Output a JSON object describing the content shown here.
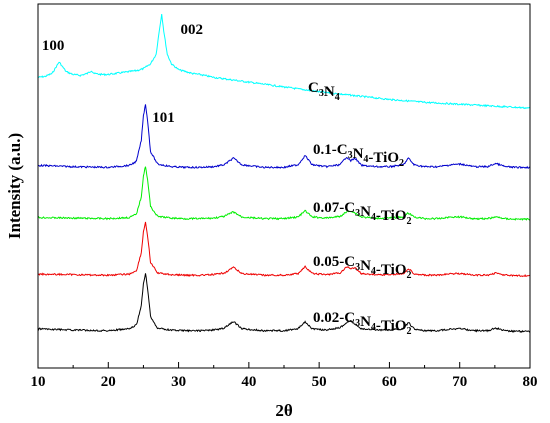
{
  "chart_data": {
    "type": "line",
    "title": "",
    "xlabel": "2θ",
    "ylabel": "Intensity (a.u.)",
    "xlim": [
      10,
      80
    ],
    "x_ticks": [
      10,
      20,
      30,
      40,
      50,
      60,
      70,
      80
    ],
    "y_ticks_shown": false,
    "grid": false,
    "legend": "none",
    "annotations": [
      {
        "text": "100",
        "x": 13.0
      },
      {
        "text": "002",
        "x": 27.6
      },
      {
        "text": "101",
        "x": 25.3
      }
    ],
    "series": [
      {
        "label_parts": [
          [
            "C",
            false
          ],
          [
            "3",
            true
          ],
          [
            "N",
            false
          ],
          [
            "4",
            true
          ]
        ],
        "color": "#00ffff",
        "x": [
          10,
          11,
          12,
          12.5,
          13.0,
          13.5,
          14,
          15,
          16,
          17,
          17.6,
          18,
          19,
          20,
          21,
          22,
          23,
          24,
          25,
          26,
          26.8,
          27.3,
          27.6,
          27.9,
          28.4,
          29,
          30,
          31,
          32,
          33,
          35,
          37,
          40,
          45,
          50,
          55,
          60,
          65,
          70,
          75,
          80
        ],
        "values": [
          0.34,
          0.35,
          0.38,
          0.44,
          0.5,
          0.45,
          0.4,
          0.37,
          0.36,
          0.38,
          0.41,
          0.38,
          0.37,
          0.37,
          0.38,
          0.39,
          0.4,
          0.41,
          0.43,
          0.48,
          0.58,
          0.85,
          1.0,
          0.82,
          0.58,
          0.48,
          0.42,
          0.4,
          0.38,
          0.37,
          0.34,
          0.32,
          0.29,
          0.24,
          0.19,
          0.15,
          0.11,
          0.08,
          0.06,
          0.04,
          0.02
        ]
      },
      {
        "label_parts": [
          [
            "0.1-C",
            false
          ],
          [
            "3",
            true
          ],
          [
            "N",
            false
          ],
          [
            "4",
            true
          ],
          [
            "-TiO",
            false
          ],
          [
            "2",
            true
          ]
        ],
        "color": "#0000cc",
        "x": [
          10,
          15,
          20,
          23,
          24,
          24.7,
          25.0,
          25.3,
          25.6,
          26,
          27,
          29,
          31,
          33,
          35,
          36.5,
          37.8,
          39,
          42,
          45,
          47,
          48.0,
          49,
          51,
          53,
          53.9,
          54.5,
          55.1,
          56,
          58,
          60,
          62,
          62.7,
          63.5,
          65,
          67,
          68.8,
          70.2,
          72,
          74,
          75.1,
          76.5,
          78,
          80
        ],
        "values": [
          0.07,
          0.05,
          0.04,
          0.07,
          0.13,
          0.45,
          0.82,
          1.0,
          0.75,
          0.28,
          0.09,
          0.05,
          0.04,
          0.04,
          0.05,
          0.08,
          0.18,
          0.08,
          0.04,
          0.04,
          0.08,
          0.22,
          0.08,
          0.05,
          0.08,
          0.2,
          0.14,
          0.18,
          0.07,
          0.05,
          0.05,
          0.08,
          0.18,
          0.08,
          0.05,
          0.05,
          0.08,
          0.09,
          0.05,
          0.05,
          0.1,
          0.05,
          0.04,
          0.04
        ]
      },
      {
        "label_parts": [
          [
            "0.07-C",
            false
          ],
          [
            "3",
            true
          ],
          [
            "N",
            false
          ],
          [
            "4",
            true
          ],
          [
            "-TiO",
            false
          ],
          [
            "2",
            true
          ]
        ],
        "color": "#00ee00",
        "x": [
          10,
          15,
          20,
          23,
          24,
          24.7,
          25.0,
          25.3,
          25.6,
          26,
          27,
          29,
          31,
          33,
          35,
          36.5,
          37.8,
          39,
          42,
          45,
          47,
          48.0,
          49,
          51,
          53,
          53.9,
          54.5,
          55.1,
          56,
          58,
          60,
          62,
          62.7,
          63.5,
          65,
          67,
          68.8,
          70.2,
          72,
          74,
          75.1,
          76.5,
          78,
          80
        ],
        "values": [
          0.08,
          0.07,
          0.06,
          0.08,
          0.14,
          0.45,
          0.82,
          1.0,
          0.75,
          0.28,
          0.1,
          0.07,
          0.06,
          0.06,
          0.07,
          0.1,
          0.18,
          0.09,
          0.06,
          0.06,
          0.09,
          0.2,
          0.09,
          0.07,
          0.1,
          0.18,
          0.2,
          0.16,
          0.09,
          0.07,
          0.07,
          0.09,
          0.16,
          0.09,
          0.06,
          0.06,
          0.09,
          0.09,
          0.06,
          0.06,
          0.09,
          0.06,
          0.05,
          0.05
        ]
      },
      {
        "label_parts": [
          [
            "0.05-C",
            false
          ],
          [
            "3",
            true
          ],
          [
            "N",
            false
          ],
          [
            "4",
            true
          ],
          [
            "-TiO",
            false
          ],
          [
            "2",
            true
          ]
        ],
        "color": "#ee0000",
        "x": [
          10,
          15,
          20,
          23,
          24,
          24.7,
          25.0,
          25.3,
          25.6,
          26,
          27,
          29,
          31,
          33,
          35,
          36.5,
          37.8,
          39,
          42,
          45,
          47,
          48.0,
          49,
          51,
          53,
          53.9,
          54.5,
          55.1,
          56,
          58,
          60,
          62,
          62.7,
          63.5,
          65,
          67,
          68.8,
          70.2,
          72,
          74,
          75.1,
          76.5,
          78,
          80
        ],
        "values": [
          0.07,
          0.06,
          0.05,
          0.07,
          0.13,
          0.45,
          0.82,
          1.0,
          0.75,
          0.28,
          0.09,
          0.06,
          0.05,
          0.05,
          0.06,
          0.09,
          0.19,
          0.08,
          0.05,
          0.05,
          0.08,
          0.2,
          0.08,
          0.06,
          0.09,
          0.2,
          0.17,
          0.18,
          0.08,
          0.06,
          0.06,
          0.08,
          0.17,
          0.08,
          0.05,
          0.05,
          0.08,
          0.08,
          0.05,
          0.05,
          0.09,
          0.05,
          0.04,
          0.04
        ]
      },
      {
        "label_parts": [
          [
            "0.02-C",
            false
          ],
          [
            "3",
            true
          ],
          [
            "N",
            false
          ],
          [
            "4",
            true
          ],
          [
            "-TiO",
            false
          ],
          [
            "2",
            true
          ]
        ],
        "color": "#000000",
        "x": [
          10,
          15,
          20,
          23,
          24,
          24.7,
          25.0,
          25.3,
          25.6,
          26,
          27,
          29,
          31,
          33,
          35,
          36.5,
          37.8,
          39,
          42,
          45,
          47,
          48.0,
          49,
          51,
          53,
          53.9,
          54.5,
          55.1,
          56,
          58,
          60,
          62,
          62.7,
          63.5,
          65,
          67,
          68.8,
          70.2,
          72,
          74,
          75.1,
          76.5,
          78,
          80
        ],
        "values": [
          0.1,
          0.08,
          0.07,
          0.1,
          0.16,
          0.47,
          0.82,
          1.0,
          0.75,
          0.3,
          0.11,
          0.08,
          0.07,
          0.07,
          0.08,
          0.11,
          0.22,
          0.1,
          0.07,
          0.07,
          0.1,
          0.22,
          0.1,
          0.08,
          0.12,
          0.2,
          0.22,
          0.18,
          0.1,
          0.08,
          0.08,
          0.1,
          0.2,
          0.1,
          0.07,
          0.07,
          0.1,
          0.1,
          0.07,
          0.07,
          0.11,
          0.07,
          0.06,
          0.06
        ]
      }
    ]
  }
}
